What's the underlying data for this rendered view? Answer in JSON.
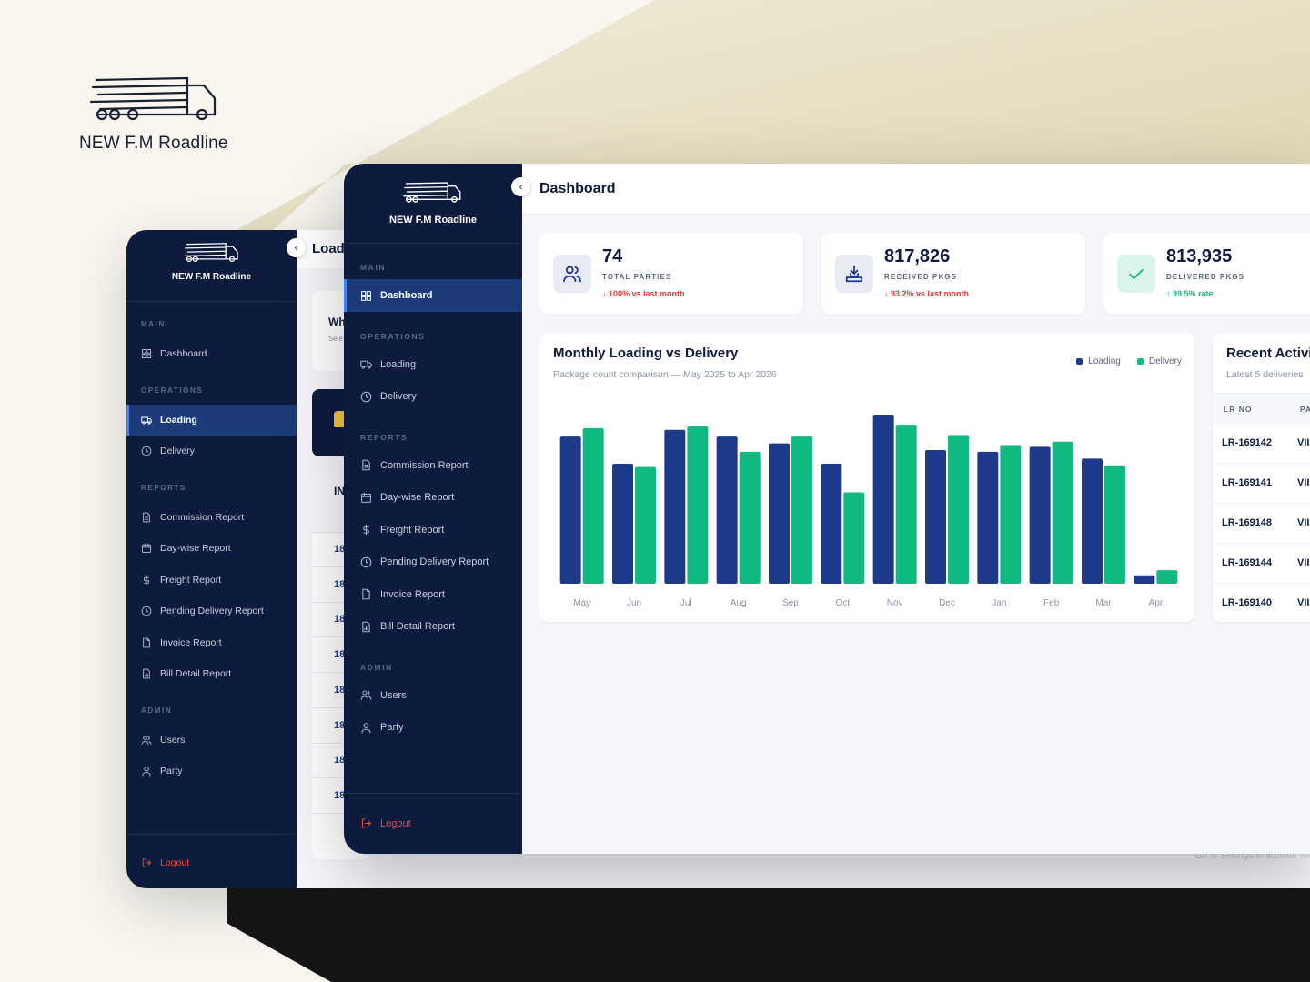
{
  "brand": {
    "name": "NEW F.M Roadline",
    "logo_icon": "truck-logo-icon"
  },
  "back_window": {
    "sidebar": {
      "brand": "NEW F.M Roadline",
      "sections": [
        {
          "title": "MAIN",
          "items": [
            {
              "label": "Dashboard",
              "icon": "grid-icon"
            }
          ]
        },
        {
          "title": "OPERATIONS",
          "items": [
            {
              "label": "Loading",
              "icon": "truck-icon",
              "active": true
            },
            {
              "label": "Delivery",
              "icon": "clock-icon"
            }
          ]
        },
        {
          "title": "REPORTS",
          "items": [
            {
              "label": "Commission Report",
              "icon": "document-icon"
            },
            {
              "label": "Day-wise Report",
              "icon": "calendar-icon"
            },
            {
              "label": "Freight Report",
              "icon": "dollar-icon"
            },
            {
              "label": "Pending Delivery Report",
              "icon": "clock-icon"
            },
            {
              "label": "Invoice Report",
              "icon": "file-icon"
            },
            {
              "label": "Bill Detail Report",
              "icon": "bill-icon"
            }
          ]
        },
        {
          "title": "ADMIN",
          "items": [
            {
              "label": "Users",
              "icon": "users-icon"
            },
            {
              "label": "Party",
              "icon": "user-icon"
            }
          ]
        }
      ],
      "logout": "Logout"
    },
    "header_title": "Loadi",
    "card_title": "Wh",
    "card_sub": "Sele",
    "table_header": "IN",
    "row_prefixes": [
      "18",
      "18",
      "18",
      "18",
      "18",
      "18",
      "18",
      "18"
    ],
    "footnote": "Go to Settings to activate Wi"
  },
  "front_window": {
    "sidebar": {
      "brand": "NEW F.M Roadline",
      "sections": [
        {
          "title": "MAIN",
          "items": [
            {
              "label": "Dashboard",
              "icon": "grid-icon",
              "active": true
            }
          ]
        },
        {
          "title": "OPERATIONS",
          "items": [
            {
              "label": "Loading",
              "icon": "truck-icon"
            },
            {
              "label": "Delivery",
              "icon": "clock-icon"
            }
          ]
        },
        {
          "title": "REPORTS",
          "items": [
            {
              "label": "Commission Report",
              "icon": "document-icon"
            },
            {
              "label": "Day-wise Report",
              "icon": "calendar-icon"
            },
            {
              "label": "Freight Report",
              "icon": "dollar-icon"
            },
            {
              "label": "Pending Delivery Report",
              "icon": "clock-icon"
            },
            {
              "label": "Invoice Report",
              "icon": "file-icon"
            },
            {
              "label": "Bill Detail Report",
              "icon": "bill-icon"
            }
          ]
        },
        {
          "title": "ADMIN",
          "items": [
            {
              "label": "Users",
              "icon": "users-icon"
            },
            {
              "label": "Party",
              "icon": "user-icon"
            }
          ]
        }
      ],
      "logout": "Logout"
    },
    "page_title": "Dashboard",
    "stats": [
      {
        "value": "74",
        "label": "TOTAL PARTIES",
        "trend": "↓ 100% vs last month",
        "trend_color": "#e53935",
        "icon": "users-icon",
        "icon_bg": "#e8ebf4",
        "icon_color": "#1e3a8a"
      },
      {
        "value": "817,826",
        "label": "RECEIVED PKGS",
        "trend": "↓ 93.2% vs last month",
        "trend_color": "#e53935",
        "icon": "inbox-download-icon",
        "icon_bg": "#e8ebf4",
        "icon_color": "#1e3a8a"
      },
      {
        "value": "813,935",
        "label": "DELIVERED PKGS",
        "trend": "↑ 99.5% rate",
        "trend_color": "#10b981",
        "icon": "check-icon",
        "icon_bg": "#dcf5ea",
        "icon_color": "#10b981"
      }
    ],
    "chart_card": {
      "title": "Monthly Loading vs Delivery",
      "subtitle": "Package count comparison — May 2025 to Apr 2026"
    },
    "recent_activity": {
      "title": "Recent Activi",
      "subtitle": "Latest 5 deliveries",
      "columns": [
        "LR NO",
        "PA"
      ],
      "rows": [
        {
          "lr": "LR-169142",
          "party": "VII"
        },
        {
          "lr": "LR-169141",
          "party": "VII"
        },
        {
          "lr": "LR-169148",
          "party": "VII"
        },
        {
          "lr": "LR-169144",
          "party": "VII"
        },
        {
          "lr": "LR-169140",
          "party": "VII"
        }
      ]
    }
  },
  "chart_data": {
    "type": "bar",
    "categories": [
      "May",
      "Jun",
      "Jul",
      "Aug",
      "Sep",
      "Oct",
      "Nov",
      "Dec",
      "Jan",
      "Feb",
      "Mar",
      "Apr"
    ],
    "series": [
      {
        "name": "Loading",
        "color": "#1e3a8a",
        "values": [
          87,
          71,
          91,
          87,
          83,
          71,
          100,
          79,
          78,
          81,
          74,
          5
        ]
      },
      {
        "name": "Delivery",
        "color": "#10b981",
        "values": [
          92,
          69,
          93,
          78,
          87,
          54,
          94,
          88,
          82,
          84,
          70,
          8
        ]
      }
    ],
    "ylim": [
      0,
      100
    ],
    "grid": false,
    "legend": "top-right",
    "title": "Monthly Loading vs Delivery",
    "xlabel": "",
    "ylabel": ""
  }
}
